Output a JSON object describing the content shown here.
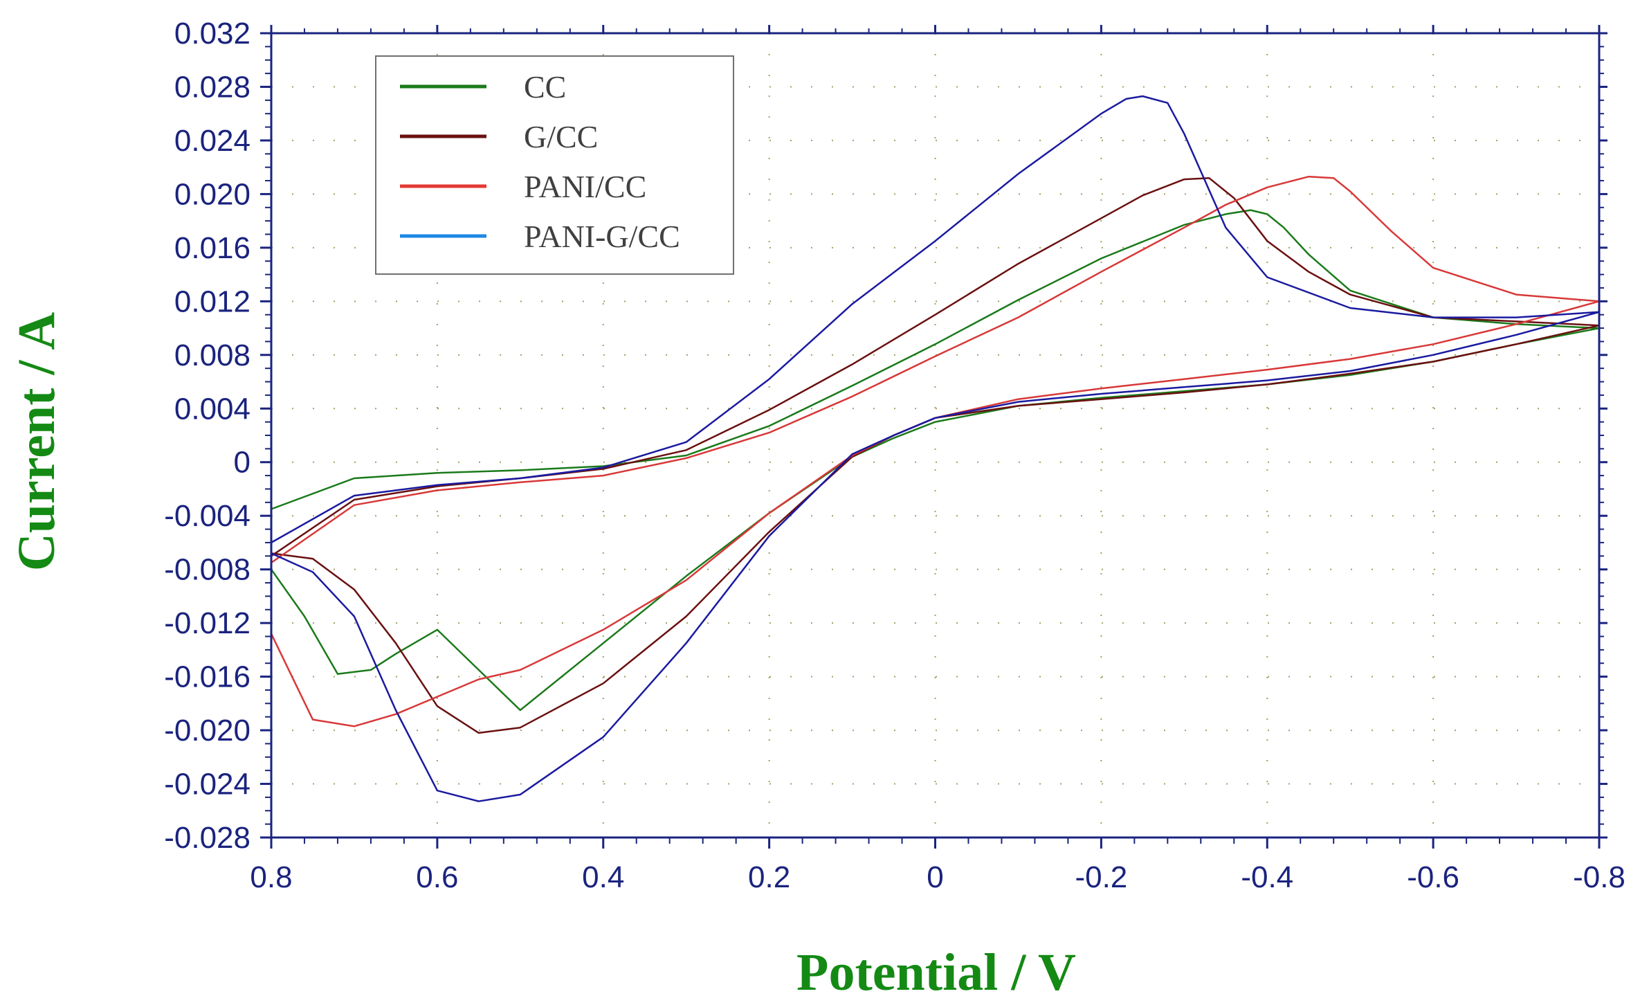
{
  "chart_data": {
    "type": "line",
    "title": "",
    "xlabel": "Potential / V",
    "ylabel": "Current / A",
    "xlim": [
      0.8,
      -0.8
    ],
    "ylim": [
      -0.028,
      0.032
    ],
    "x_ticks": [
      0.8,
      0.6,
      0.4,
      0.2,
      0,
      -0.2,
      -0.4,
      -0.6,
      -0.8
    ],
    "x_tick_labels": [
      "0.8",
      "0.6",
      "0.4",
      "0.2",
      "0",
      "-0.2",
      "-0.4",
      "-0.6",
      "-0.8"
    ],
    "y_ticks": [
      0.032,
      0.028,
      0.024,
      0.02,
      0.016,
      0.012,
      0.008,
      0.004,
      0,
      -0.004,
      -0.008,
      -0.012,
      -0.016,
      -0.02,
      -0.024,
      -0.028
    ],
    "y_tick_labels": [
      "0.032",
      "0.028",
      "0.024",
      "0.020",
      "0.016",
      "0.012",
      "0.008",
      "0.004",
      "0",
      "-0.004",
      "-0.008",
      "-0.012",
      "-0.016",
      "-0.020",
      "-0.024",
      "-0.028"
    ],
    "grid": "dotted",
    "legend": "top-left",
    "colors": {
      "tick_labels": "#1a237e",
      "axis_titles": "#148a14",
      "axes": "#1a237e",
      "grid": "#8a8a3a"
    },
    "series": [
      {
        "name": "CC",
        "color": "#1a7a1a",
        "legend_color": "#1a7a1a",
        "x": [
          0.8,
          0.7,
          0.6,
          0.5,
          0.4,
          0.3,
          0.2,
          0.1,
          0.0,
          -0.1,
          -0.2,
          -0.3,
          -0.35,
          -0.38,
          -0.4,
          -0.42,
          -0.45,
          -0.5,
          -0.6,
          -0.7,
          -0.8,
          -0.7,
          -0.6,
          -0.5,
          -0.4,
          -0.3,
          -0.2,
          -0.1,
          0.0,
          0.05,
          0.1,
          0.2,
          0.3,
          0.4,
          0.5,
          0.6,
          0.65,
          0.68,
          0.72,
          0.76,
          0.8
        ],
        "y": [
          -0.0035,
          -0.0012,
          -0.0008,
          -0.0006,
          -0.0003,
          0.0005,
          0.0027,
          0.0057,
          0.0088,
          0.0121,
          0.0152,
          0.0177,
          0.0185,
          0.0188,
          0.0185,
          0.0175,
          0.0155,
          0.0128,
          0.0108,
          0.0103,
          0.01,
          0.0088,
          0.0075,
          0.0065,
          0.0058,
          0.0053,
          0.0048,
          0.0042,
          0.003,
          0.0018,
          0.0004,
          -0.0038,
          -0.0085,
          -0.0135,
          -0.0185,
          -0.0125,
          -0.0143,
          -0.0155,
          -0.0158,
          -0.0115,
          -0.008
        ]
      },
      {
        "name": "G/CC",
        "color": "#6a1010",
        "legend_color": "#6a1010",
        "x": [
          0.8,
          0.7,
          0.6,
          0.5,
          0.4,
          0.3,
          0.2,
          0.1,
          0.0,
          -0.1,
          -0.2,
          -0.25,
          -0.3,
          -0.33,
          -0.36,
          -0.4,
          -0.45,
          -0.5,
          -0.6,
          -0.7,
          -0.8,
          -0.7,
          -0.6,
          -0.5,
          -0.4,
          -0.3,
          -0.2,
          -0.1,
          0.0,
          0.05,
          0.1,
          0.2,
          0.3,
          0.4,
          0.5,
          0.55,
          0.6,
          0.65,
          0.7,
          0.75,
          0.8
        ],
        "y": [
          -0.007,
          -0.0028,
          -0.0018,
          -0.0012,
          -0.0005,
          0.0009,
          0.0039,
          0.0073,
          0.011,
          0.0148,
          0.0182,
          0.0199,
          0.0211,
          0.0212,
          0.0197,
          0.0165,
          0.0142,
          0.0125,
          0.0108,
          0.0105,
          0.0102,
          0.0088,
          0.0075,
          0.0066,
          0.0058,
          0.0052,
          0.0047,
          0.0042,
          0.0033,
          0.002,
          0.0004,
          -0.0052,
          -0.0115,
          -0.0165,
          -0.0198,
          -0.0202,
          -0.0182,
          -0.0135,
          -0.0095,
          -0.0072,
          -0.0068
        ]
      },
      {
        "name": "PANI/CC",
        "color": "#d83838",
        "legend_color": "#e53935",
        "x": [
          0.8,
          0.7,
          0.6,
          0.5,
          0.4,
          0.3,
          0.2,
          0.1,
          0.0,
          -0.1,
          -0.2,
          -0.3,
          -0.35,
          -0.4,
          -0.45,
          -0.48,
          -0.5,
          -0.55,
          -0.6,
          -0.7,
          -0.8,
          -0.7,
          -0.6,
          -0.5,
          -0.4,
          -0.3,
          -0.2,
          -0.1,
          0.0,
          0.05,
          0.1,
          0.2,
          0.3,
          0.4,
          0.5,
          0.55,
          0.6,
          0.65,
          0.7,
          0.75,
          0.8
        ],
        "y": [
          -0.0075,
          -0.0032,
          -0.0021,
          -0.0015,
          -0.001,
          0.0003,
          0.0022,
          0.0049,
          0.0079,
          0.0108,
          0.0142,
          0.0175,
          0.0192,
          0.0205,
          0.0213,
          0.0212,
          0.0202,
          0.0172,
          0.0145,
          0.0125,
          0.012,
          0.0103,
          0.0088,
          0.0077,
          0.0069,
          0.0062,
          0.0055,
          0.0047,
          0.0033,
          0.002,
          0.0005,
          -0.0038,
          -0.0088,
          -0.0125,
          -0.0155,
          -0.0162,
          -0.0175,
          -0.0188,
          -0.0197,
          -0.0192,
          -0.0128
        ]
      },
      {
        "name": "PANI-G/CC",
        "color": "#1a1aa0",
        "legend_color": "#1e88e5",
        "x": [
          0.8,
          0.7,
          0.6,
          0.5,
          0.4,
          0.3,
          0.2,
          0.1,
          0.0,
          -0.1,
          -0.2,
          -0.23,
          -0.25,
          -0.28,
          -0.3,
          -0.35,
          -0.4,
          -0.5,
          -0.6,
          -0.7,
          -0.8,
          -0.7,
          -0.6,
          -0.5,
          -0.4,
          -0.3,
          -0.2,
          -0.1,
          0.0,
          0.05,
          0.1,
          0.2,
          0.3,
          0.4,
          0.5,
          0.55,
          0.6,
          0.65,
          0.7,
          0.75,
          0.8
        ],
        "y": [
          -0.006,
          -0.0025,
          -0.0017,
          -0.0012,
          -0.0004,
          0.0015,
          0.0062,
          0.0118,
          0.0165,
          0.0215,
          0.026,
          0.0271,
          0.0273,
          0.0268,
          0.0245,
          0.0175,
          0.0138,
          0.0115,
          0.0108,
          0.0108,
          0.0112,
          0.0095,
          0.008,
          0.0068,
          0.0061,
          0.0056,
          0.0051,
          0.0045,
          0.0033,
          0.002,
          0.0006,
          -0.0055,
          -0.0135,
          -0.0205,
          -0.0248,
          -0.0253,
          -0.0245,
          -0.0185,
          -0.0115,
          -0.0082,
          -0.0068
        ]
      }
    ]
  }
}
